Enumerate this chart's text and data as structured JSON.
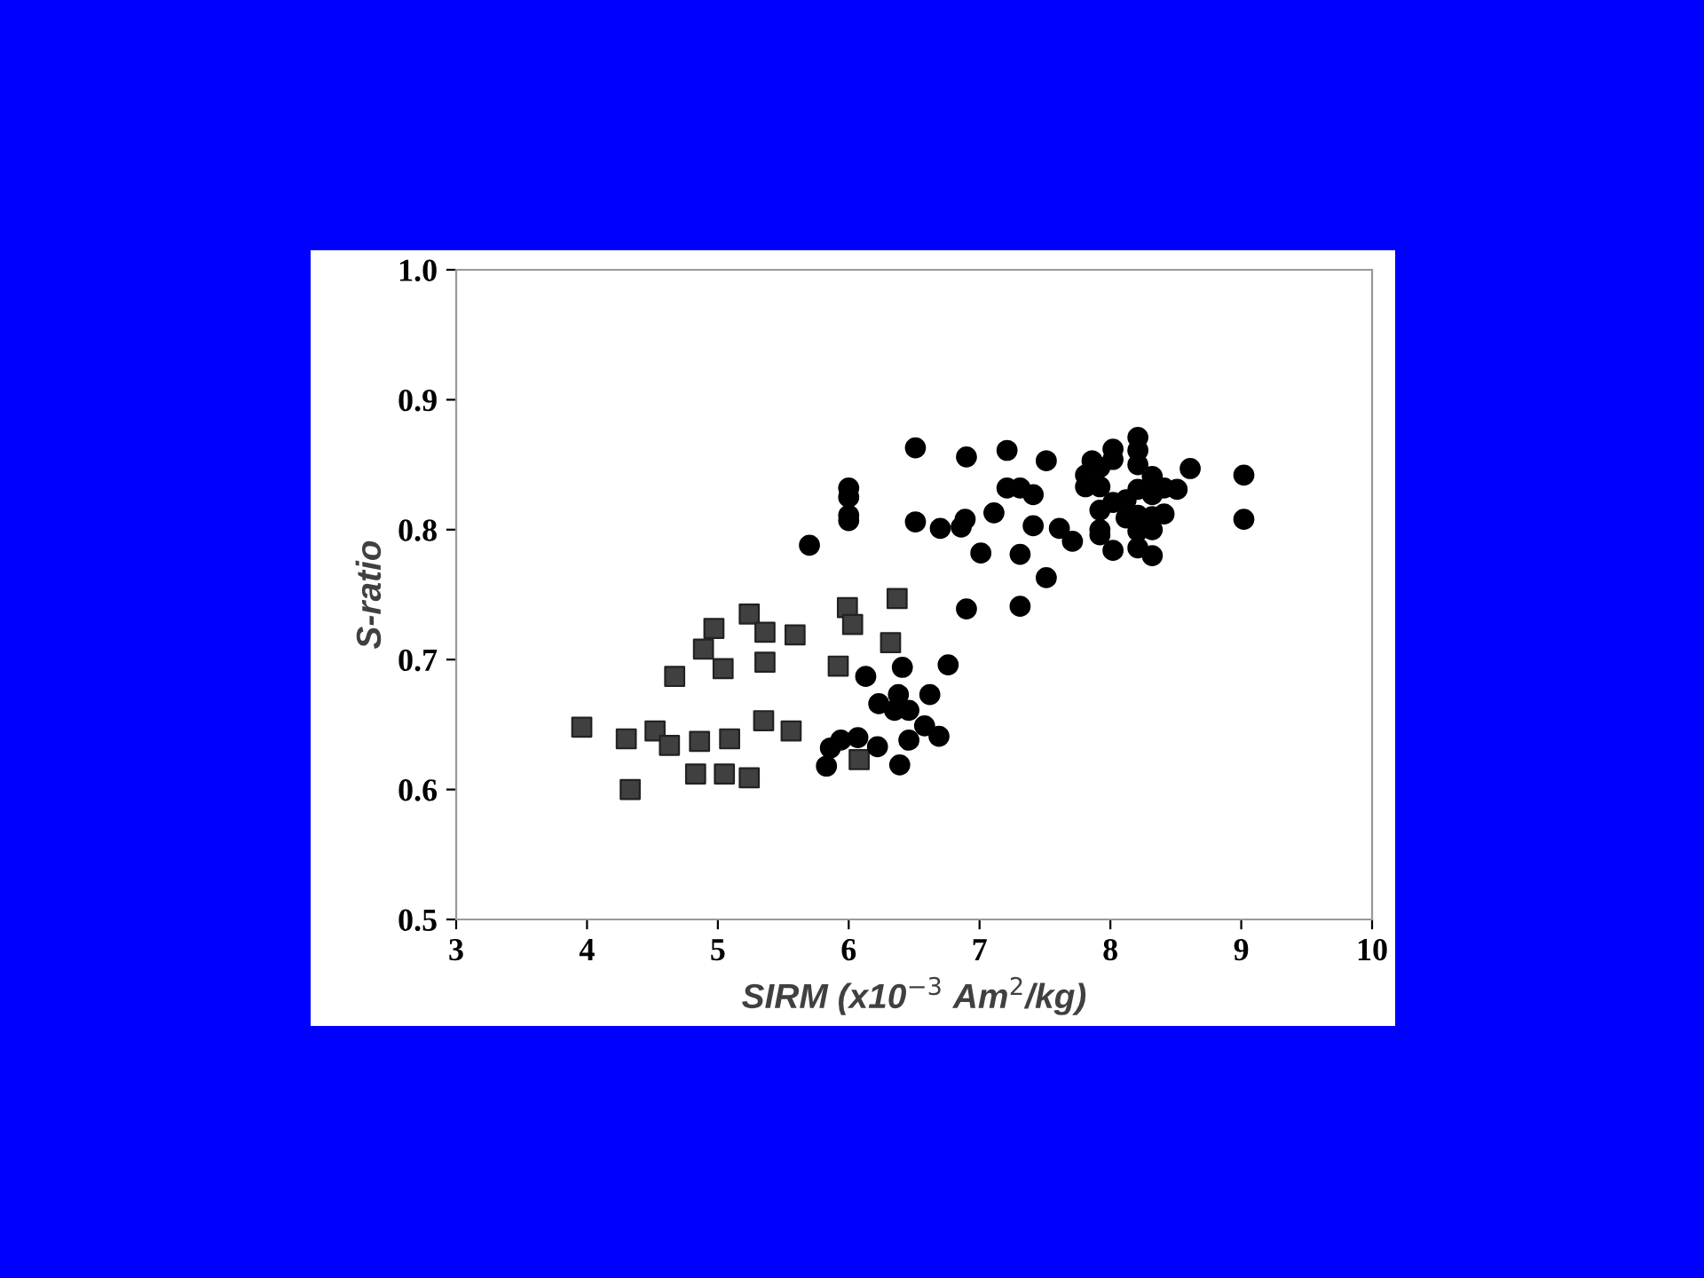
{
  "chart_data": {
    "type": "scatter",
    "xlabel": "SIRM (x10$^{−3}$ Am$^{2}$/kg)",
    "ylabel": "S-ratio",
    "xlim": [
      3,
      10
    ],
    "xticks": [
      3,
      4,
      5,
      6,
      7,
      8,
      9,
      10
    ],
    "ylim": [
      0.5,
      1.0
    ],
    "yticks": [
      {
        "value": 0.5,
        "label": "0.5"
      },
      {
        "value": 0.6,
        "label": "0.6"
      },
      {
        "value": 0.7,
        "label": "0.7"
      },
      {
        "value": 0.8,
        "label": "0.8"
      },
      {
        "value": 0.9,
        "label": "0.9"
      },
      {
        "value": 1.0,
        "label": "1.0"
      }
    ],
    "grid": false,
    "legend": false,
    "series": [
      {
        "color": "#404040",
        "marker": "square",
        "x": [
          3.96,
          4.3,
          4.52,
          4.63,
          4.86,
          5.09,
          5.35,
          5.56,
          4.33,
          4.83,
          5.05,
          5.24,
          4.67,
          4.89,
          4.97,
          5.04,
          5.24,
          5.36,
          5.36,
          5.59,
          5.92,
          5.99,
          6.03,
          6.37,
          6.32,
          6.08
        ],
        "values": [
          0.648,
          0.639,
          0.645,
          0.634,
          0.637,
          0.639,
          0.653,
          0.645,
          0.6,
          0.612,
          0.612,
          0.609,
          0.687,
          0.708,
          0.724,
          0.693,
          0.735,
          0.721,
          0.698,
          0.719,
          0.695,
          0.74,
          0.727,
          0.747,
          0.713,
          0.623
        ]
      },
      {
        "color": "#000000",
        "marker": "circle",
        "x": [
          6.51,
          6.9,
          7.21,
          7.51,
          6.0,
          6.0,
          6.0,
          6.0,
          5.7,
          6.51,
          6.7,
          6.86,
          6.89,
          7.11,
          7.21,
          7.31,
          7.41,
          7.41,
          7.61,
          7.71,
          7.01,
          7.31,
          7.51,
          6.9,
          7.31,
          8.02,
          6.76,
          6.41,
          6.13,
          6.23,
          6.38,
          6.35,
          6.46,
          6.62,
          6.58,
          6.69,
          6.46,
          6.22,
          6.07,
          5.94,
          5.86,
          5.83,
          6.39,
          7.86,
          8.02,
          8.02,
          8.21,
          8.21,
          8.21,
          7.81,
          7.92,
          7.81,
          7.92,
          8.32,
          8.21,
          8.32,
          8.41,
          8.51,
          8.61,
          9.02,
          9.02,
          8.02,
          8.12,
          7.92,
          8.12,
          8.21,
          8.32,
          8.41,
          7.92,
          7.92,
          8.21,
          8.32,
          8.21,
          8.32
        ],
        "values": [
          0.863,
          0.856,
          0.861,
          0.853,
          0.832,
          0.825,
          0.811,
          0.807,
          0.788,
          0.806,
          0.801,
          0.802,
          0.808,
          0.813,
          0.832,
          0.832,
          0.827,
          0.803,
          0.801,
          0.791,
          0.782,
          0.781,
          0.763,
          0.739,
          0.741,
          0.784,
          0.696,
          0.694,
          0.687,
          0.666,
          0.673,
          0.661,
          0.661,
          0.673,
          0.649,
          0.641,
          0.638,
          0.633,
          0.64,
          0.638,
          0.632,
          0.618,
          0.619,
          0.853,
          0.862,
          0.854,
          0.871,
          0.861,
          0.85,
          0.842,
          0.848,
          0.833,
          0.833,
          0.841,
          0.831,
          0.827,
          0.832,
          0.831,
          0.847,
          0.842,
          0.808,
          0.821,
          0.823,
          0.815,
          0.809,
          0.811,
          0.81,
          0.812,
          0.8,
          0.796,
          0.799,
          0.8,
          0.786,
          0.78
        ]
      }
    ]
  }
}
